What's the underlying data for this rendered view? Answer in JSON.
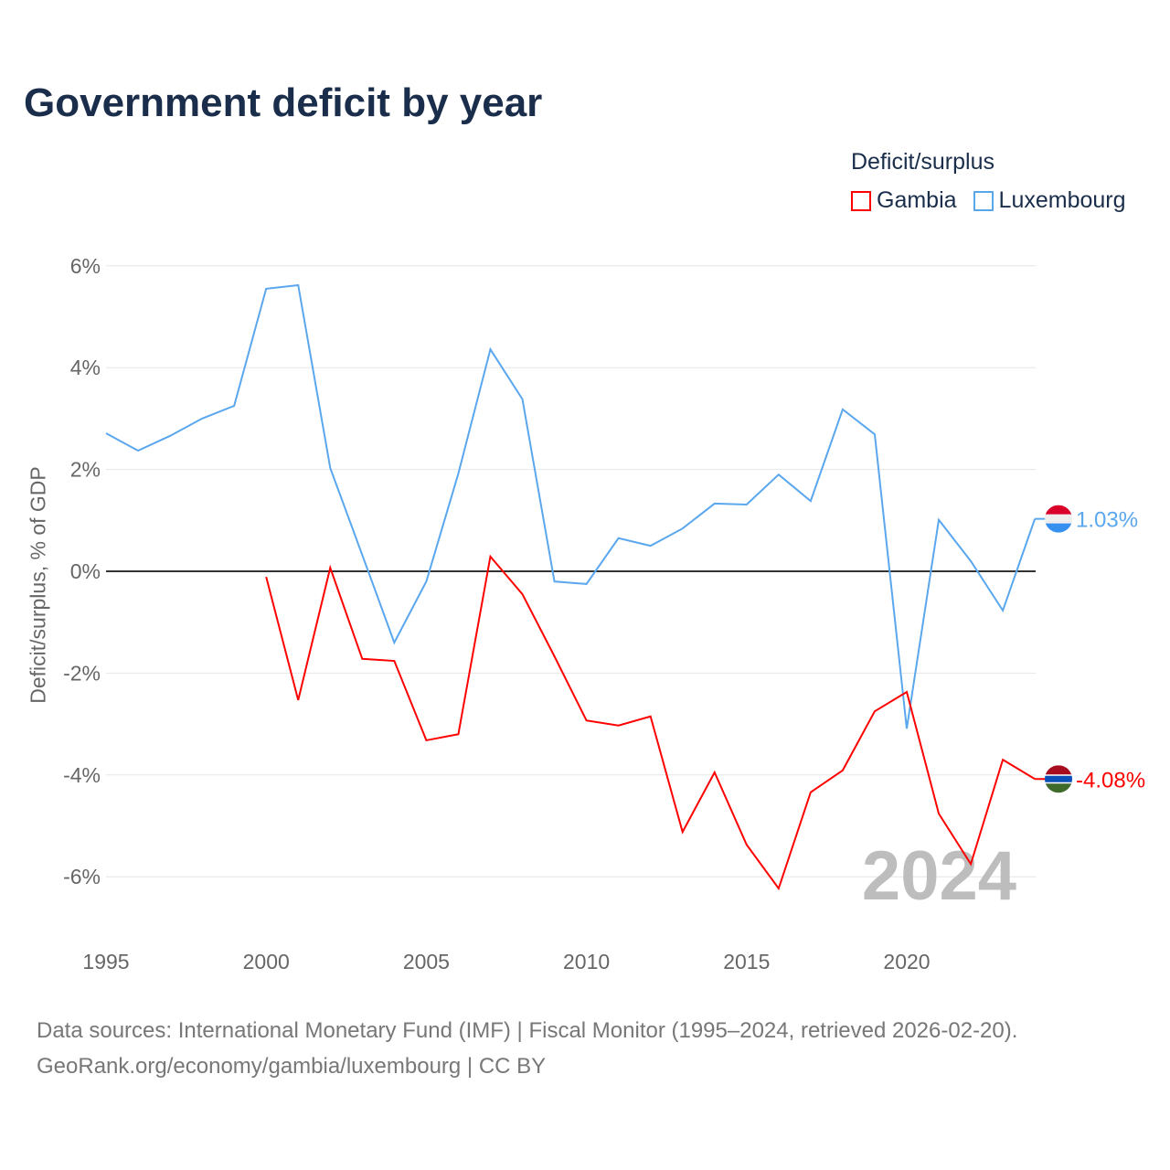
{
  "title": "Government deficit by year",
  "legend": {
    "title": "Deficit/surplus",
    "items": [
      "Gambia",
      "Luxembourg"
    ]
  },
  "colors": {
    "Gambia": "#ff0000",
    "Luxembourg": "#5aa7ee"
  },
  "watermark_year": "2024",
  "source": {
    "line1": "Data sources: International Monetary Fund (IMF) | Fiscal Monitor (1995–2024, retrieved 2026-02-20).",
    "line2": "GeoRank.org/economy/gambia/luxembourg | CC BY"
  },
  "chart_data": {
    "type": "line",
    "title": "Government deficit by year",
    "xlabel": "",
    "ylabel": "Deficit/surplus, % of GDP",
    "xlim": [
      1995,
      2024
    ],
    "ylim": [
      -7,
      6.5
    ],
    "x_ticks": [
      1995,
      2000,
      2005,
      2010,
      2015,
      2020
    ],
    "x_tick_labels": [
      "1995",
      "2000",
      "2005",
      "2010",
      "2015",
      "2020"
    ],
    "y_ticks": [
      6,
      4,
      2,
      0,
      -2,
      -4,
      -6
    ],
    "y_tick_labels": [
      "6%",
      "4%",
      "2%",
      "0%",
      "-2%",
      "-4%",
      "-6%"
    ],
    "legend_position": "top-right",
    "series": [
      {
        "name": "Luxembourg",
        "end_label": "1.03%",
        "x": [
          1995,
          1996,
          1997,
          1998,
          1999,
          2000,
          2001,
          2002,
          2003,
          2004,
          2005,
          2006,
          2007,
          2008,
          2009,
          2010,
          2011,
          2012,
          2013,
          2014,
          2015,
          2016,
          2017,
          2018,
          2019,
          2020,
          2021,
          2022,
          2023,
          2024
        ],
        "values": [
          2.71,
          2.37,
          2.66,
          3.0,
          3.25,
          5.55,
          5.62,
          2.03,
          0.32,
          -1.4,
          -0.2,
          1.92,
          4.36,
          3.38,
          -0.2,
          -0.25,
          0.65,
          0.5,
          0.84,
          1.33,
          1.31,
          1.9,
          1.38,
          3.18,
          2.69,
          -3.09,
          1.01,
          0.2,
          -0.77,
          1.03
        ]
      },
      {
        "name": "Gambia",
        "end_label": "-4.08%",
        "x": [
          2000,
          2001,
          2002,
          2003,
          2004,
          2005,
          2006,
          2007,
          2008,
          2009,
          2010,
          2011,
          2012,
          2013,
          2014,
          2015,
          2016,
          2017,
          2018,
          2019,
          2020,
          2021,
          2022,
          2023,
          2024
        ],
        "values": [
          -0.11,
          -2.53,
          0.07,
          -1.72,
          -1.76,
          -3.32,
          -3.2,
          0.29,
          -0.45,
          -1.67,
          -2.93,
          -3.03,
          -2.85,
          -5.12,
          -3.95,
          -5.37,
          -6.23,
          -4.34,
          -3.91,
          -2.75,
          -2.37,
          -4.76,
          -5.75,
          -3.7,
          -4.08
        ]
      }
    ]
  }
}
